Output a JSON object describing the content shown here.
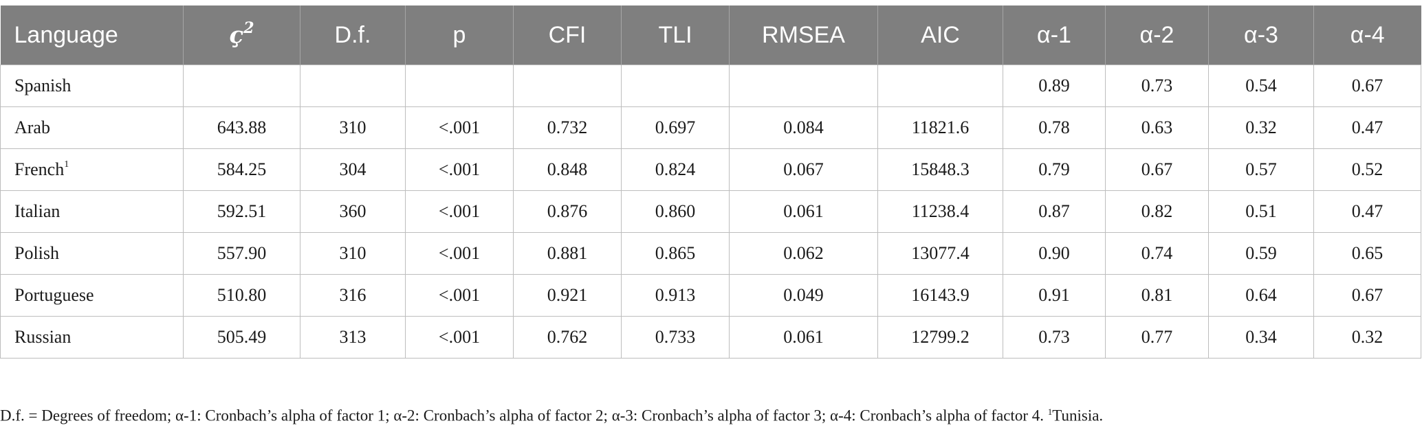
{
  "table": {
    "headers": [
      "Language",
      "ç",
      "D.f.",
      "p",
      "CFI",
      "TLI",
      "RMSEA",
      "AIC",
      "α-1",
      "α-2",
      "α-3",
      "α-4"
    ],
    "chi_superscript": "2",
    "rows": [
      {
        "language": "Spanish",
        "superscript": "",
        "cells": [
          "",
          "",
          "",
          "",
          "",
          "",
          "",
          "0.89",
          "0.73",
          "0.54",
          "0.67"
        ]
      },
      {
        "language": "Arab",
        "superscript": "",
        "cells": [
          "643.88",
          "310",
          "<.001",
          "0.732",
          "0.697",
          "0.084",
          "11821.6",
          "0.78",
          "0.63",
          "0.32",
          "0.47"
        ]
      },
      {
        "language": "French",
        "superscript": "1",
        "cells": [
          "584.25",
          "304",
          "<.001",
          "0.848",
          "0.824",
          "0.067",
          "15848.3",
          "0.79",
          "0.67",
          "0.57",
          "0.52"
        ]
      },
      {
        "language": "Italian",
        "superscript": "",
        "cells": [
          "592.51",
          "360",
          "<.001",
          "0.876",
          "0.860",
          "0.061",
          "11238.4",
          "0.87",
          "0.82",
          "0.51",
          "0.47"
        ]
      },
      {
        "language": "Polish",
        "superscript": "",
        "cells": [
          "557.90",
          "310",
          "<.001",
          "0.881",
          "0.865",
          "0.062",
          "13077.4",
          "0.90",
          "0.74",
          "0.59",
          "0.65"
        ]
      },
      {
        "language": "Portuguese",
        "superscript": "",
        "cells": [
          "510.80",
          "316",
          "<.001",
          "0.921",
          "0.913",
          "0.049",
          "16143.9",
          "0.91",
          "0.81",
          "0.64",
          "0.67"
        ]
      },
      {
        "language": "Russian",
        "superscript": "",
        "cells": [
          "505.49",
          "313",
          "<.001",
          "0.762",
          "0.733",
          "0.061",
          "12799.2",
          "0.73",
          "0.77",
          "0.34",
          "0.32"
        ]
      }
    ]
  },
  "note": {
    "text": "D.f. = Degrees of freedom; α-1: Cronbach’s alpha of factor 1; α-2: Cronbach’s alpha of factor 2; α-3: Cronbach’s alpha of factor 3; α-4: Cronbach’s alpha of factor 4. ",
    "footnote_marker": "1",
    "footnote_text": "Tunisia."
  },
  "colors": {
    "header_bg": "#7f7f7f",
    "header_text": "#ffffff",
    "grid": "#bdbdbd"
  }
}
